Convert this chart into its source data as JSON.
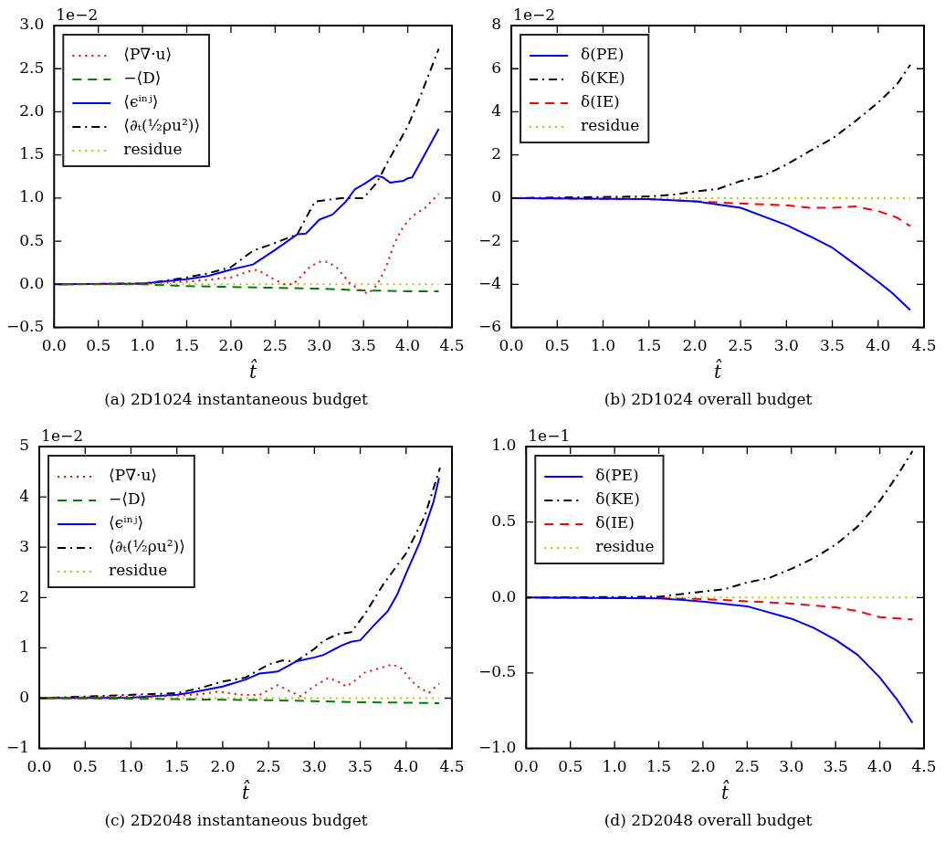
{
  "chart_data": [
    {
      "type": "line",
      "title": "(a) 2D1024 instantaneous budget",
      "xlabel": "t̂",
      "annotations": [
        "1e−2"
      ],
      "legend": "top left",
      "xlim": [
        0,
        4.5
      ],
      "xticks": [
        {
          "value": 0,
          "label": "0.0"
        },
        0.5,
        {
          "value": 1,
          "label": "1.0"
        },
        1.5,
        {
          "value": 2,
          "label": "2.0"
        },
        2.5,
        {
          "value": 3,
          "label": "3.0"
        },
        3.5,
        {
          "value": 4,
          "label": "4.0"
        },
        4.5
      ],
      "ylim": [
        -0.5,
        3
      ],
      "yticks": [
        {
          "value": -0.5,
          "label": "−0.5"
        },
        {
          "value": 0,
          "label": "0.0"
        },
        0.5,
        {
          "value": 1,
          "label": "1.0"
        },
        1.5,
        {
          "value": 2,
          "label": "2.0"
        },
        2.5,
        {
          "value": 3,
          "label": "3.0"
        }
      ],
      "series": [
        {
          "name": "⟨P∇·u⟩",
          "color": "#ff0000",
          "line_style": "dotted",
          "x": [
            0,
            1,
            1.5,
            2,
            2.2,
            2.3,
            2.45,
            2.6,
            2.7,
            2.8,
            2.9,
            3,
            3.1,
            3.2,
            3.35,
            3.45,
            3.55,
            3.65,
            3.75,
            3.85,
            3.95,
            4.05,
            4.2,
            4.35
          ],
          "values": [
            0,
            0.01,
            0.03,
            0.08,
            0.15,
            0.17,
            0.08,
            0,
            0,
            0.1,
            0.21,
            0.26,
            0.26,
            0.19,
            0.01,
            -0.06,
            -0.11,
            -0.01,
            0.19,
            0.48,
            0.67,
            0.79,
            0.89,
            1.05
          ]
        },
        {
          "name": "−⟨D⟩",
          "color": "#008000",
          "line_style": "dashed",
          "x": [
            0,
            1,
            1.5,
            2,
            2.5,
            3,
            3.5,
            4,
            4.35
          ],
          "values": [
            0,
            0,
            -0.02,
            -0.03,
            -0.04,
            -0.05,
            -0.07,
            -0.08,
            -0.08
          ]
        },
        {
          "name": "⟨ϵⁱⁿʲ⟩",
          "color": "#0000ff",
          "line_style": "solid",
          "x": [
            0,
            1,
            1.5,
            1.75,
            2,
            2.25,
            2.5,
            2.75,
            2.85,
            3,
            3.15,
            3.3,
            3.4,
            3.5,
            3.65,
            3.72,
            3.8,
            3.95,
            4,
            4.05,
            4.35
          ],
          "values": [
            0,
            0.01,
            0.06,
            0.1,
            0.17,
            0.23,
            0.4,
            0.58,
            0.59,
            0.75,
            0.81,
            0.96,
            1.1,
            1.16,
            1.26,
            1.24,
            1.18,
            1.2,
            1.23,
            1.24,
            1.8
          ]
        },
        {
          "name": "⟨∂ₜ(½ρu²)⟩",
          "color": "#000000",
          "line_style": "dashdot",
          "x": [
            0,
            1,
            1.25,
            1.5,
            1.75,
            2,
            2.25,
            2.5,
            2.75,
            2.95,
            3.25,
            3.5,
            3.65,
            3.8,
            4,
            4.15,
            4.35
          ],
          "values": [
            0,
            0.01,
            0.04,
            0.08,
            0.13,
            0.2,
            0.39,
            0.48,
            0.58,
            0.96,
            1,
            1,
            1.18,
            1.47,
            1.83,
            2.2,
            2.73
          ]
        },
        {
          "name": "residue",
          "color": "#bfbf00",
          "line_style": "dotted",
          "x": [
            0,
            4.35
          ],
          "values": [
            0,
            0
          ]
        }
      ]
    },
    {
      "type": "line",
      "title": "(b) 2D1024 overall budget",
      "xlabel": "t̂",
      "annotations": [
        "1e−2"
      ],
      "legend": "top left",
      "xlim": [
        0,
        4.5
      ],
      "xticks": [
        {
          "value": 0,
          "label": "0.0"
        },
        0.5,
        {
          "value": 1,
          "label": "1.0"
        },
        1.5,
        {
          "value": 2,
          "label": "2.0"
        },
        2.5,
        {
          "value": 3,
          "label": "3.0"
        },
        3.5,
        {
          "value": 4,
          "label": "4.0"
        },
        4.5
      ],
      "ylim": [
        -6,
        8
      ],
      "yticks": [
        {
          "value": -6,
          "label": "−6"
        },
        {
          "value": -4,
          "label": "−4"
        },
        {
          "value": -2,
          "label": "−2"
        },
        0,
        2,
        4,
        6,
        8
      ],
      "series": [
        {
          "name": "δ(PE)",
          "color": "#0000ff",
          "line_style": "solid",
          "x": [
            0,
            1.5,
            2,
            2.5,
            3,
            3.25,
            3.5,
            3.75,
            4,
            4.15,
            4.35
          ],
          "values": [
            0,
            -0.05,
            -0.15,
            -0.45,
            -1.25,
            -1.76,
            -2.3,
            -3.08,
            -3.88,
            -4.39,
            -5.19
          ]
        },
        {
          "name": "δ(KE)",
          "color": "#000000",
          "line_style": "dashdot",
          "x": [
            0,
            1.5,
            1.75,
            2,
            2.25,
            2.5,
            2.75,
            3,
            3.25,
            3.5,
            3.75,
            4,
            4.2,
            4.35
          ],
          "values": [
            0,
            0.08,
            0.15,
            0.3,
            0.42,
            0.79,
            1.04,
            1.55,
            2.17,
            2.76,
            3.56,
            4.43,
            5.24,
            6.18
          ]
        },
        {
          "name": "δ(IE)",
          "color": "#ff0000",
          "line_style": "dashed",
          "x": [
            0,
            1.5,
            2,
            2.5,
            3,
            3.25,
            3.5,
            3.75,
            4,
            4.2,
            4.35
          ],
          "values": [
            0,
            -0.05,
            -0.15,
            -0.25,
            -0.33,
            -0.45,
            -0.45,
            -0.38,
            -0.6,
            -0.89,
            -1.3
          ]
        },
        {
          "name": "residue",
          "color": "#bfbf00",
          "line_style": "dotted",
          "x": [
            0,
            4.35
          ],
          "values": [
            0,
            0
          ]
        }
      ]
    },
    {
      "type": "line",
      "title": "(c) 2D2048 instantaneous budget",
      "xlabel": "t̂",
      "annotations": [
        "1e−2"
      ],
      "legend": "top left",
      "xlim": [
        0,
        4.5
      ],
      "xticks": [
        {
          "value": 0,
          "label": "0.0"
        },
        0.5,
        {
          "value": 1,
          "label": "1.0"
        },
        1.5,
        {
          "value": 2,
          "label": "2.0"
        },
        2.5,
        {
          "value": 3,
          "label": "3.0"
        },
        3.5,
        {
          "value": 4,
          "label": "4.0"
        },
        4.5
      ],
      "ylim": [
        -1,
        5
      ],
      "yticks": [
        {
          "value": -1,
          "label": "−1"
        },
        0,
        1,
        2,
        3,
        4,
        5
      ],
      "series": [
        {
          "name": "⟨P∇·u⟩",
          "color": "#ff0000",
          "line_style": "dotted",
          "x": [
            0,
            1.5,
            1.75,
            1.95,
            2.2,
            2.4,
            2.6,
            2.75,
            2.85,
            3,
            3.15,
            3.25,
            3.35,
            3.45,
            3.55,
            3.7,
            3.85,
            3.95,
            4.05,
            4.15,
            4.25,
            4.36
          ],
          "values": [
            0,
            0.05,
            0.08,
            0.13,
            0.07,
            0.06,
            0.26,
            0.12,
            0.04,
            0.24,
            0.4,
            0.34,
            0.23,
            0.36,
            0.51,
            0.59,
            0.67,
            0.59,
            0.36,
            0.2,
            0.11,
            0.29
          ]
        },
        {
          "name": "−⟨D⟩",
          "color": "#008000",
          "line_style": "dashed",
          "x": [
            0,
            1,
            1.5,
            2,
            2.5,
            3,
            3.5,
            4,
            4.36
          ],
          "values": [
            0,
            -0.01,
            -0.02,
            -0.03,
            -0.04,
            -0.06,
            -0.08,
            -0.09,
            -0.1
          ]
        },
        {
          "name": "⟨ϵⁱⁿʲ⟩",
          "color": "#0000ff",
          "line_style": "solid",
          "x": [
            0,
            1,
            1.5,
            1.65,
            2,
            2.25,
            2.4,
            2.5,
            2.6,
            2.8,
            3,
            3.1,
            3.3,
            3.4,
            3.5,
            3.65,
            3.8,
            3.9,
            4,
            4.15,
            4.3,
            4.36
          ],
          "values": [
            0,
            0.01,
            0.07,
            0.11,
            0.23,
            0.37,
            0.49,
            0.51,
            0.53,
            0.73,
            0.81,
            0.86,
            1.05,
            1.12,
            1.15,
            1.45,
            1.73,
            2.05,
            2.48,
            3.1,
            3.91,
            4.38
          ]
        },
        {
          "name": "⟨∂ₜ(½ρu²)⟩",
          "color": "#000000",
          "line_style": "dashdot",
          "x": [
            0,
            1.5,
            1.75,
            2,
            2.25,
            2.5,
            2.65,
            2.8,
            3,
            3.1,
            3.25,
            3.4,
            3.55,
            3.75,
            4,
            4.2,
            4.37
          ],
          "values": [
            0,
            0.1,
            0.2,
            0.33,
            0.41,
            0.67,
            0.75,
            0.73,
            0.98,
            1.14,
            1.27,
            1.31,
            1.67,
            2.26,
            2.88,
            3.6,
            4.58
          ]
        },
        {
          "name": "residue",
          "color": "#bfbf00",
          "line_style": "dotted",
          "x": [
            0,
            4.36
          ],
          "values": [
            0,
            0
          ]
        }
      ]
    },
    {
      "type": "line",
      "title": "(d) 2D2048 overall budget",
      "xlabel": "t̂",
      "annotations": [
        "1e−1"
      ],
      "legend": "top left",
      "xlim": [
        0,
        4.5
      ],
      "xticks": [
        {
          "value": 0,
          "label": "0.0"
        },
        0.5,
        {
          "value": 1,
          "label": "1.0"
        },
        1.5,
        {
          "value": 2,
          "label": "2.0"
        },
        2.5,
        {
          "value": 3,
          "label": "3.0"
        },
        3.5,
        {
          "value": 4,
          "label": "4.0"
        },
        4.5
      ],
      "ylim": [
        -1,
        1
      ],
      "yticks": [
        {
          "value": -1,
          "label": "−1.0"
        },
        {
          "value": -0.5,
          "label": "−0.5"
        },
        {
          "value": 0,
          "label": "0.0"
        },
        0.5,
        {
          "value": 1,
          "label": "1.0"
        }
      ],
      "series": [
        {
          "name": "δ(PE)",
          "color": "#0000ff",
          "line_style": "solid",
          "x": [
            0,
            1.5,
            2,
            2.5,
            3,
            3.25,
            3.5,
            3.75,
            4,
            4.2,
            4.37
          ],
          "values": [
            0,
            -0.005,
            -0.027,
            -0.058,
            -0.14,
            -0.2,
            -0.28,
            -0.38,
            -0.53,
            -0.68,
            -0.83
          ]
        },
        {
          "name": "δ(KE)",
          "color": "#000000",
          "line_style": "dashdot",
          "x": [
            0,
            1.5,
            2,
            2.25,
            2.5,
            2.75,
            3,
            3.25,
            3.5,
            3.75,
            4,
            4.2,
            4.37
          ],
          "values": [
            0,
            0.005,
            0.04,
            0.056,
            0.1,
            0.13,
            0.19,
            0.26,
            0.35,
            0.47,
            0.64,
            0.81,
            0.97
          ]
        },
        {
          "name": "δ(IE)",
          "color": "#ff0000",
          "line_style": "dashed",
          "x": [
            0,
            1.5,
            2,
            2.5,
            3,
            3.5,
            3.75,
            4,
            4.37
          ],
          "values": [
            0,
            -0.005,
            -0.01,
            -0.025,
            -0.04,
            -0.065,
            -0.09,
            -0.13,
            -0.145
          ]
        },
        {
          "name": "residue",
          "color": "#bfbf00",
          "line_style": "dotted",
          "x": [
            0,
            4.37
          ],
          "values": [
            0,
            0
          ]
        }
      ]
    }
  ]
}
